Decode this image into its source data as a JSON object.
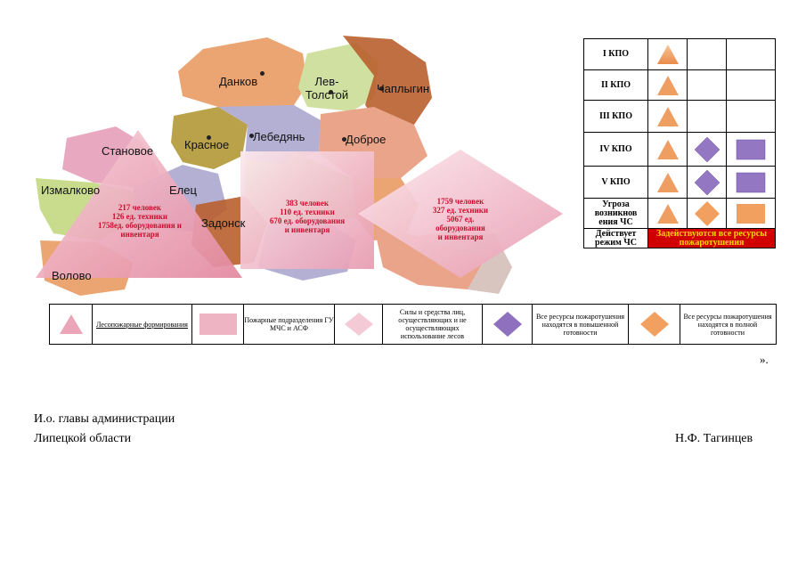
{
  "map": {
    "regions": {
      "dankov": "Данков",
      "lev_tolstoy": "Лев-\nТолстой",
      "chaplygin": "Чаплыгин",
      "stanovoe": "Становое",
      "krasnoe": "Красное",
      "lebedyan": "Лебедянь",
      "dobroe": "Доброе",
      "izmalkovo": "Измалково",
      "elets": "Елец",
      "zadonsk": "Задонск",
      "volovo": "Волово"
    },
    "colors": {
      "orange": "#e8955a",
      "green": "#c9dc8e",
      "brown": "#b85f2e",
      "olive": "#b9a24a",
      "lavender": "#b4b0d4",
      "salmon": "#e9a48a",
      "pink": "#e8a9c0"
    }
  },
  "overlays": {
    "triangle_text": [
      "217 человек",
      "126 ед. техники",
      "1758ед. оборудования и",
      "инвентаря"
    ],
    "square_text": [
      "383 человек",
      "110 ед. техники",
      "670 ед. оборудования",
      "и инвентаря"
    ],
    "diamond_text": [
      "1759 человек",
      "327 ед. техники",
      "5067 ед.",
      "оборудования",
      "и инвентаря"
    ]
  },
  "kpo_table": {
    "rows": [
      {
        "label": "I КПО"
      },
      {
        "label": "II КПО"
      },
      {
        "label": "III КПО"
      },
      {
        "label": "IV КПО"
      },
      {
        "label": "V КПО"
      },
      {
        "label": "Угроза возникнов ения ЧС"
      },
      {
        "label": "Действует режим ЧС",
        "note": "Задействуются все ресурсы пожаротушения"
      }
    ]
  },
  "legend": {
    "forest": "Лесопожарные формирования",
    "fire_units": "Пожарные подразделения ГУ МЧС и АСФ",
    "forces": "Силы и средства лиц, осуществляющих и не осуществляющих использование лесов",
    "increased": "Все ресурсы пожаротушения находятся в повышенной готовности",
    "full": "Все ресурсы пожаротушения находятся в полной готовности"
  },
  "quote_end": "».",
  "signature": {
    "line1": "И.о. главы администрации",
    "line2": "Липецкой области",
    "name": "Н.Ф. Тагинцев"
  },
  "icons": {
    "triangle": "orange-triangle-icon",
    "diamond": "purple-diamond-icon",
    "square": "purple-square-icon"
  }
}
